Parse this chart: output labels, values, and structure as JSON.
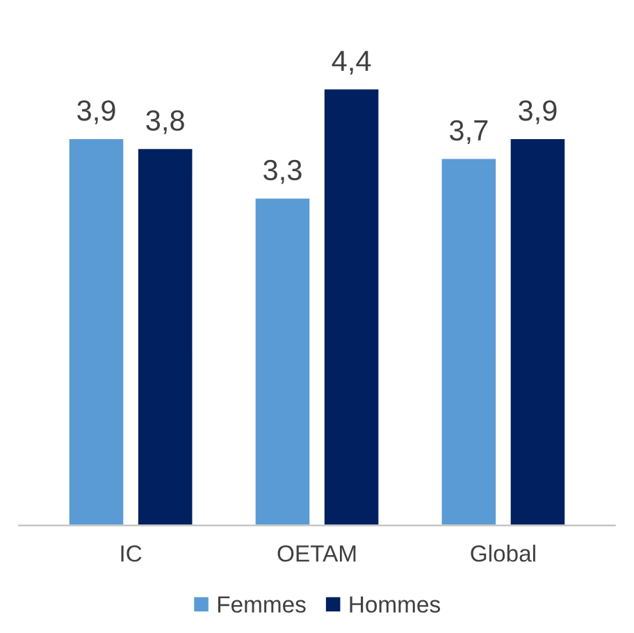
{
  "chart_data": {
    "type": "bar",
    "categories": [
      "IC",
      "OETAM",
      "Global"
    ],
    "series": [
      {
        "name": "Femmes",
        "color": "#5b9bd5",
        "values": [
          3.9,
          3.3,
          3.7
        ],
        "value_labels": [
          "3,9",
          "3,3",
          "3,7"
        ]
      },
      {
        "name": "Hommes",
        "color": "#002060",
        "values": [
          3.8,
          4.4,
          3.9
        ],
        "value_labels": [
          "3,8",
          "4,4",
          "3,9"
        ]
      }
    ],
    "legend": "bottom",
    "grid": false
  }
}
